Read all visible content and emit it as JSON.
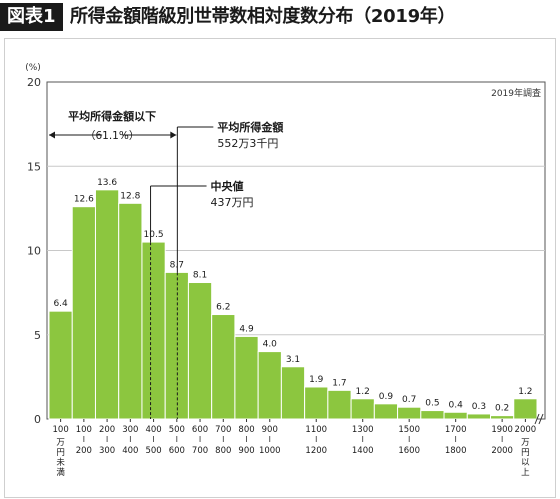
{
  "header": {
    "badge": "図表1",
    "title": "所得金額階級別世帯数相対度数分布（2019年）"
  },
  "chart_data": {
    "type": "bar",
    "title": "所得金額階級別世帯数相対度数分布（2019年）",
    "unit_label": "(%)",
    "source_note": "2019年調査",
    "ylim": [
      0,
      20
    ],
    "yticks": [
      "0",
      "5",
      "10",
      "15",
      "20"
    ],
    "values": [
      6.4,
      12.6,
      13.6,
      12.8,
      10.5,
      8.7,
      8.1,
      6.2,
      4.9,
      4.0,
      3.1,
      1.9,
      1.7,
      1.2,
      0.9,
      0.7,
      0.5,
      0.4,
      0.3,
      0.2,
      1.2
    ],
    "value_labels": [
      "6.4",
      "12.6",
      "13.6",
      "12.8",
      "10.5",
      "8.7",
      "8.1",
      "6.2",
      "4.9",
      "4.0",
      "3.1",
      "1.9",
      "1.7",
      "1.2",
      "0.9",
      "0.7",
      "0.5",
      "0.4",
      "0.3",
      "0.2",
      "1.2"
    ],
    "x_tick_labels": [
      {
        "top": "100",
        "bottom": "万円未満"
      },
      {
        "top": "100",
        "bottom": "200"
      },
      {
        "top": "200",
        "bottom": "300"
      },
      {
        "top": "300",
        "bottom": "400"
      },
      {
        "top": "400",
        "bottom": "500"
      },
      {
        "top": "500",
        "bottom": "600"
      },
      {
        "top": "600",
        "bottom": "700"
      },
      {
        "top": "700",
        "bottom": "800"
      },
      {
        "top": "800",
        "bottom": "900"
      },
      {
        "top": "900",
        "bottom": "1000"
      },
      {
        "top": "1100",
        "bottom": "1200"
      },
      {
        "top": "1300",
        "bottom": "1400"
      },
      {
        "top": "1500",
        "bottom": "1600"
      },
      {
        "top": "1700",
        "bottom": "1800"
      },
      {
        "top": "1900",
        "bottom": "2000"
      },
      {
        "top": "2000",
        "bottom": "万円以上"
      }
    ],
    "x_tick_label_bar_index": [
      0,
      1,
      2,
      3,
      4,
      5,
      6,
      7,
      8,
      9,
      11,
      13,
      15,
      17,
      19,
      20
    ],
    "bar_color": "#8cc63f",
    "annotations": {
      "below_avg": {
        "line1": "平均所得金額以下",
        "line2": "（61.1%）"
      },
      "mean": {
        "label": "平均所得金額",
        "value": "552万3千円",
        "x_value": 552.3
      },
      "median": {
        "label": "中央値",
        "value": "437万円",
        "x_value": 437
      }
    }
  }
}
